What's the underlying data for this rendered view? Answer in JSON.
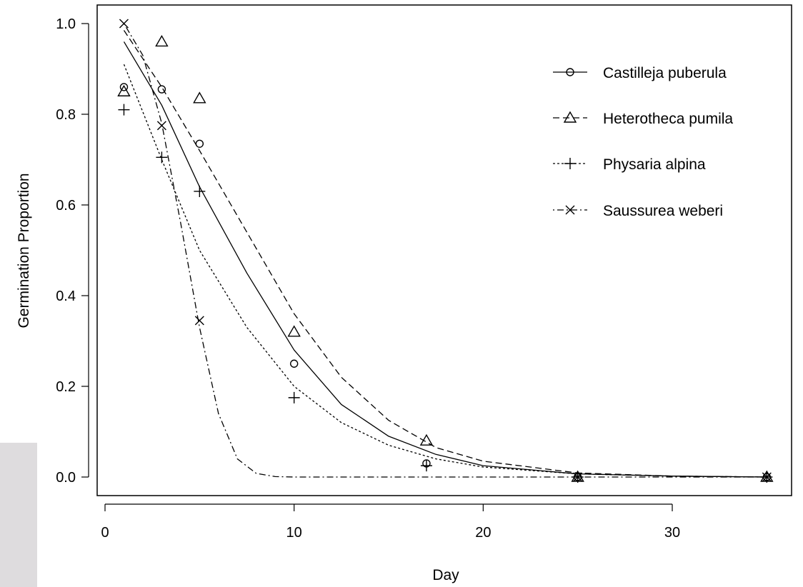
{
  "chart_data": {
    "type": "scatter",
    "xlabel": "Day",
    "ylabel": "Germination Proportion",
    "xlim": [
      0,
      35
    ],
    "ylim": [
      0,
      1
    ],
    "x_ticks": [
      "0",
      "10",
      "20",
      "30"
    ],
    "y_ticks": [
      "0.0",
      "0.2",
      "0.4",
      "0.6",
      "0.8",
      "1.0"
    ],
    "grid": false,
    "legend_position": "top-right",
    "series": [
      {
        "name": "Castilleja puberula",
        "marker": "circle",
        "line_style": "solid",
        "points": [
          [
            1,
            0.86
          ],
          [
            3,
            0.855
          ],
          [
            5,
            0.735
          ],
          [
            10,
            0.25
          ],
          [
            17,
            0.03
          ],
          [
            25,
            0.0
          ],
          [
            35,
            0.0
          ]
        ],
        "fit_curve": [
          [
            1,
            0.96
          ],
          [
            3,
            0.82
          ],
          [
            5,
            0.64
          ],
          [
            7.5,
            0.45
          ],
          [
            10,
            0.28
          ],
          [
            12.5,
            0.16
          ],
          [
            15,
            0.09
          ],
          [
            17.5,
            0.05
          ],
          [
            20,
            0.025
          ],
          [
            25,
            0.007
          ],
          [
            30,
            0.002
          ],
          [
            35,
            0.0
          ]
        ]
      },
      {
        "name": "Heterotheca pumila",
        "marker": "triangle",
        "line_style": "dashed",
        "points": [
          [
            1,
            0.85
          ],
          [
            3,
            0.96
          ],
          [
            5,
            0.835
          ],
          [
            10,
            0.32
          ],
          [
            17,
            0.08
          ],
          [
            25,
            0.0
          ],
          [
            35,
            0.0
          ]
        ],
        "fit_curve": [
          [
            1,
            0.985
          ],
          [
            3,
            0.86
          ],
          [
            5,
            0.72
          ],
          [
            7.5,
            0.54
          ],
          [
            10,
            0.36
          ],
          [
            12.5,
            0.22
          ],
          [
            15,
            0.125
          ],
          [
            17.5,
            0.065
          ],
          [
            20,
            0.035
          ],
          [
            25,
            0.009
          ],
          [
            30,
            0.002
          ],
          [
            35,
            0.0
          ]
        ]
      },
      {
        "name": "Physaria alpina",
        "marker": "plus",
        "line_style": "dotted",
        "points": [
          [
            1,
            0.81
          ],
          [
            3,
            0.705
          ],
          [
            5,
            0.63
          ],
          [
            10,
            0.175
          ],
          [
            17,
            0.025
          ],
          [
            25,
            0.0
          ],
          [
            35,
            0.0
          ]
        ],
        "fit_curve": [
          [
            1,
            0.91
          ],
          [
            3,
            0.7
          ],
          [
            5,
            0.5
          ],
          [
            7.5,
            0.33
          ],
          [
            10,
            0.2
          ],
          [
            12.5,
            0.12
          ],
          [
            15,
            0.07
          ],
          [
            17.5,
            0.04
          ],
          [
            20,
            0.022
          ],
          [
            25,
            0.007
          ],
          [
            30,
            0.002
          ],
          [
            35,
            0.0
          ]
        ]
      },
      {
        "name": "Saussurea weberi",
        "marker": "x",
        "line_style": "dotdash",
        "points": [
          [
            1,
            1.0
          ],
          [
            3,
            0.775
          ],
          [
            5,
            0.345
          ],
          [
            25,
            0.0
          ],
          [
            35,
            0.0
          ]
        ],
        "fit_curve": [
          [
            1,
            1.0
          ],
          [
            2,
            0.93
          ],
          [
            3,
            0.78
          ],
          [
            4,
            0.56
          ],
          [
            5,
            0.33
          ],
          [
            6,
            0.14
          ],
          [
            7,
            0.04
          ],
          [
            8,
            0.008
          ],
          [
            9,
            0.001
          ],
          [
            10,
            0.0
          ],
          [
            35,
            0.0
          ]
        ]
      }
    ]
  }
}
